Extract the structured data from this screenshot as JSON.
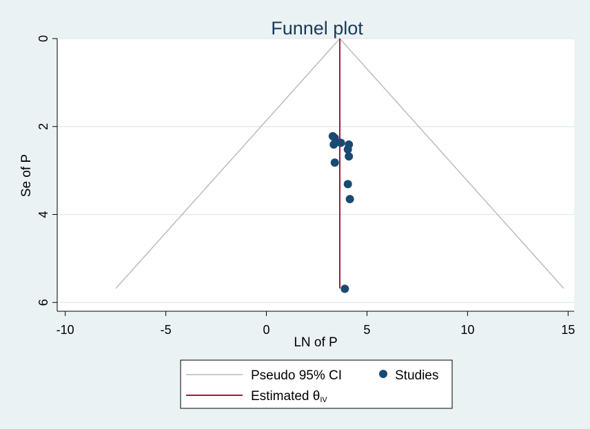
{
  "chart_data": {
    "type": "scatter",
    "title": "Funnel plot",
    "xlabel": "LN of P",
    "ylabel": "Se of P",
    "xlim": [
      -10.4,
      15.3
    ],
    "ylim": [
      0,
      6.2
    ],
    "y_reversed": true,
    "x_ticks": [
      -10,
      -5,
      0,
      5,
      10,
      15
    ],
    "y_ticks": [
      0,
      2,
      4,
      6
    ],
    "grid": "horizontal",
    "estimated_theta": 3.65,
    "pseudo_ci_se_max": 5.68,
    "series": [
      {
        "name": "Studies",
        "color": "#1a4a72",
        "points": [
          {
            "x": 3.3,
            "y": 2.22
          },
          {
            "x": 3.4,
            "y": 2.26
          },
          {
            "x": 3.45,
            "y": 2.36
          },
          {
            "x": 3.7,
            "y": 2.37
          },
          {
            "x": 3.35,
            "y": 2.41
          },
          {
            "x": 4.1,
            "y": 2.41
          },
          {
            "x": 4.05,
            "y": 2.52
          },
          {
            "x": 4.1,
            "y": 2.68
          },
          {
            "x": 3.4,
            "y": 2.82
          },
          {
            "x": 4.05,
            "y": 3.31
          },
          {
            "x": 4.15,
            "y": 3.65
          },
          {
            "x": 3.9,
            "y": 5.69
          }
        ]
      }
    ],
    "legend": {
      "placement": "bottom",
      "items": [
        {
          "label": "Pseudo 95% CI",
          "kind": "line",
          "color": "#bbbbbb"
        },
        {
          "label": "Studies",
          "kind": "marker",
          "color": "#1a4a72"
        },
        {
          "label": "Estimated θ",
          "subscript": "IV",
          "kind": "line",
          "color": "#a3163c"
        }
      ]
    },
    "colors": {
      "background": "#eaf2f3",
      "plot_background": "#ffffff",
      "grid": "#e3ecee",
      "ci_line": "#bbbbbb",
      "estimate_line": "#a3163c",
      "marker": "#1a4a72"
    }
  }
}
